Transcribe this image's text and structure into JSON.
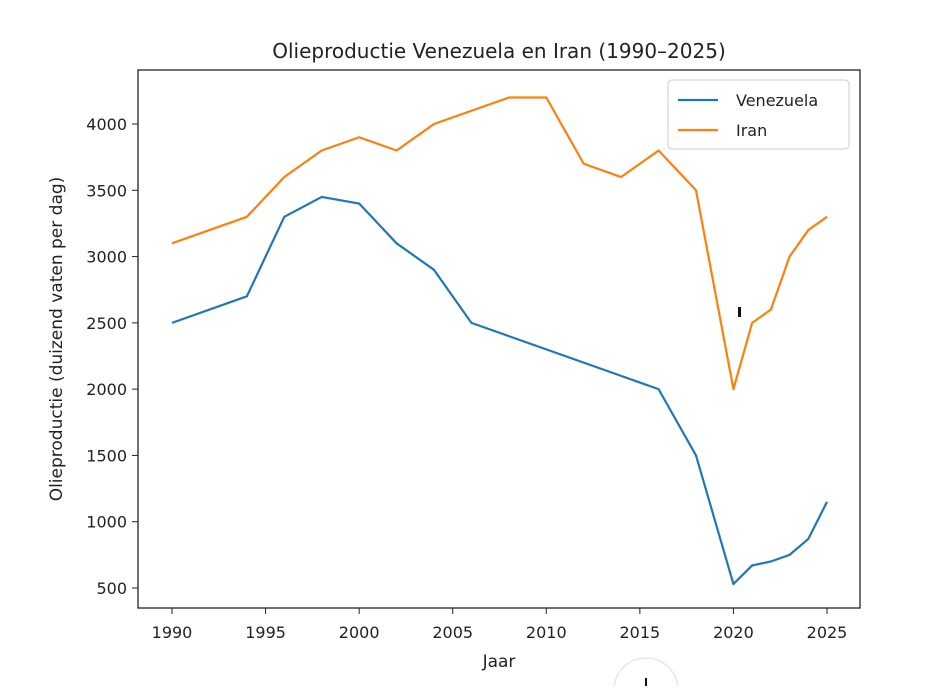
{
  "chart_data": {
    "type": "line",
    "title": "Olieproductie Venezuela en Iran (1990–2025)",
    "xlabel": "Jaar",
    "ylabel": "Olieproductie (duizend vaten per dag)",
    "xlim": [
      1988.2,
      2026.6
    ],
    "ylim": [
      350,
      4420
    ],
    "xticks": [
      1990,
      1995,
      2000,
      2005,
      2010,
      2015,
      2020,
      2025
    ],
    "yticks": [
      500,
      1000,
      1500,
      2000,
      2500,
      3000,
      3500,
      4000
    ],
    "legend_position": "top-right",
    "grid": false,
    "series": [
      {
        "name": "Venezuela",
        "color": "#1f77b4",
        "x": [
          1990,
          1994,
          1996,
          1998,
          2000,
          2002,
          2004,
          2006,
          2008,
          2010,
          2012,
          2014,
          2016,
          2018,
          2020,
          2021,
          2022,
          2023,
          2024,
          2025
        ],
        "y": [
          2500,
          2700,
          3300,
          3450,
          3400,
          3100,
          2900,
          2500,
          2400,
          2300,
          2200,
          2100,
          2000,
          1500,
          530,
          670,
          700,
          750,
          870,
          1150
        ]
      },
      {
        "name": "Iran",
        "color": "#ff7f0e",
        "x": [
          1990,
          1994,
          1996,
          1998,
          2000,
          2002,
          2004,
          2006,
          2008,
          2010,
          2012,
          2014,
          2016,
          2018,
          2020,
          2021,
          2022,
          2023,
          2024,
          2025
        ],
        "y": [
          3100,
          3300,
          3600,
          3800,
          3900,
          3800,
          4000,
          4100,
          4200,
          4200,
          3700,
          3600,
          3800,
          3500,
          2000,
          2500,
          2600,
          3000,
          3200,
          3300
        ]
      }
    ]
  }
}
